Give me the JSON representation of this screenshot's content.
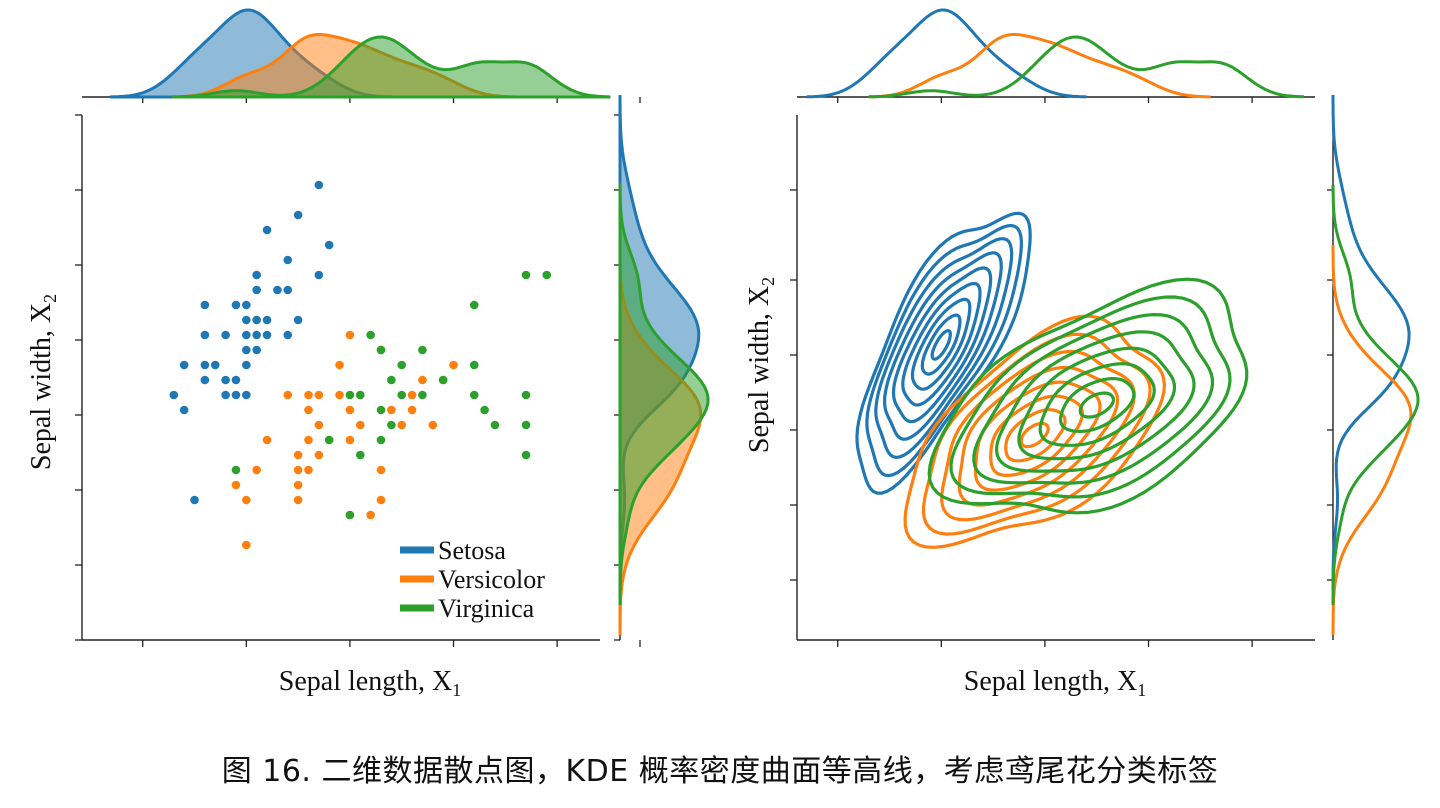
{
  "figure_caption": "图 16. 二维数据散点图，KDE 概率密度曲面等高线，考虑鸢尾花分类标签",
  "colors": {
    "setosa": "#1f77b4",
    "versicolor": "#ff7f0e",
    "virginica": "#2ca02c"
  },
  "chart_data": [
    {
      "type": "scatter",
      "title": "",
      "xlabel": "Sepal length, X",
      "xlabel_sub": "1",
      "ylabel": "Sepal width, X",
      "ylabel_sub": "2",
      "xlim": [
        3.8,
        8.8
      ],
      "ylim": [
        1.5,
        5.0
      ],
      "x_ticks": [
        4,
        5,
        6,
        7,
        8,
        8.8
      ],
      "y_ticks": [
        1.5,
        2.0,
        2.5,
        3.0,
        3.5,
        4.0,
        4.5,
        5.0
      ],
      "tick_labels_shown": false,
      "legend": {
        "position": "lower-right",
        "entries": [
          "Setosa",
          "Versicolor",
          "Virginica"
        ]
      },
      "series": [
        {
          "name": "Setosa",
          "points": [
            [
              4.3,
              3.0
            ],
            [
              4.4,
              2.9
            ],
            [
              4.4,
              3.2
            ],
            [
              4.5,
              2.3
            ],
            [
              4.6,
              3.1
            ],
            [
              4.6,
              3.4
            ],
            [
              4.6,
              3.6
            ],
            [
              4.6,
              3.2
            ],
            [
              4.7,
              3.2
            ],
            [
              4.8,
              3.4
            ],
            [
              4.8,
              3.0
            ],
            [
              4.8,
              3.1
            ],
            [
              4.9,
              3.0
            ],
            [
              4.9,
              3.1
            ],
            [
              4.9,
              3.6
            ],
            [
              5.0,
              3.6
            ],
            [
              5.0,
              3.4
            ],
            [
              5.0,
              3.0
            ],
            [
              5.0,
              3.3
            ],
            [
              5.0,
              3.5
            ],
            [
              5.0,
              3.2
            ],
            [
              5.1,
              3.5
            ],
            [
              5.1,
              3.8
            ],
            [
              5.1,
              3.7
            ],
            [
              5.1,
              3.3
            ],
            [
              5.1,
              3.4
            ],
            [
              5.2,
              3.5
            ],
            [
              5.2,
              3.4
            ],
            [
              5.2,
              4.1
            ],
            [
              5.3,
              3.7
            ],
            [
              5.4,
              3.9
            ],
            [
              5.4,
              3.7
            ],
            [
              5.4,
              3.4
            ],
            [
              5.5,
              4.2
            ],
            [
              5.5,
              3.5
            ],
            [
              5.7,
              4.4
            ],
            [
              5.7,
              3.8
            ],
            [
              5.8,
              4.0
            ]
          ]
        },
        {
          "name": "Versicolor",
          "points": [
            [
              5.0,
              2.0
            ],
            [
              4.9,
              2.4
            ],
            [
              5.0,
              2.3
            ],
            [
              5.1,
              2.5
            ],
            [
              5.2,
              2.7
            ],
            [
              5.4,
              3.0
            ],
            [
              5.5,
              2.3
            ],
            [
              5.5,
              2.4
            ],
            [
              5.5,
              2.5
            ],
            [
              5.5,
              2.6
            ],
            [
              5.6,
              2.9
            ],
            [
              5.6,
              3.0
            ],
            [
              5.6,
              2.7
            ],
            [
              5.6,
              2.5
            ],
            [
              5.7,
              2.8
            ],
            [
              5.7,
              2.6
            ],
            [
              5.7,
              3.0
            ],
            [
              5.8,
              2.7
            ],
            [
              5.9,
              3.0
            ],
            [
              5.9,
              3.2
            ],
            [
              6.0,
              2.2
            ],
            [
              6.0,
              2.7
            ],
            [
              6.0,
              2.9
            ],
            [
              6.0,
              3.4
            ],
            [
              6.1,
              2.8
            ],
            [
              6.1,
              3.0
            ],
            [
              6.2,
              2.2
            ],
            [
              6.3,
              2.3
            ],
            [
              6.3,
              2.5
            ],
            [
              6.3,
              3.3
            ],
            [
              6.4,
              2.9
            ],
            [
              6.5,
              2.8
            ],
            [
              6.6,
              2.9
            ],
            [
              6.6,
              3.0
            ],
            [
              6.7,
              3.1
            ],
            [
              6.8,
              2.8
            ],
            [
              6.9,
              3.1
            ],
            [
              7.0,
              3.2
            ]
          ]
        },
        {
          "name": "Virginica",
          "points": [
            [
              4.9,
              2.5
            ],
            [
              5.8,
              2.7
            ],
            [
              6.0,
              2.2
            ],
            [
              6.0,
              3.0
            ],
            [
              6.1,
              2.6
            ],
            [
              6.1,
              3.0
            ],
            [
              6.2,
              3.4
            ],
            [
              6.3,
              2.7
            ],
            [
              6.3,
              2.9
            ],
            [
              6.3,
              3.3
            ],
            [
              6.4,
              2.8
            ],
            [
              6.4,
              3.1
            ],
            [
              6.5,
              3.0
            ],
            [
              6.5,
              3.2
            ],
            [
              6.7,
              3.0
            ],
            [
              6.7,
              3.3
            ],
            [
              6.9,
              3.1
            ],
            [
              7.2,
              3.6
            ],
            [
              7.2,
              3.2
            ],
            [
              7.2,
              3.0
            ],
            [
              7.3,
              2.9
            ],
            [
              7.4,
              2.8
            ],
            [
              7.7,
              3.8
            ],
            [
              7.7,
              2.6
            ],
            [
              7.7,
              2.8
            ],
            [
              7.7,
              3.0
            ],
            [
              7.9,
              3.8
            ]
          ]
        }
      ]
    },
    {
      "type": "kde-contour",
      "title": "",
      "xlabel": "Sepal length, X",
      "xlabel_sub": "1",
      "ylabel": "Sepal width, X",
      "ylabel_sub": "2",
      "xlim": [
        3.8,
        8.8
      ],
      "ylim": [
        1.5,
        5.0
      ],
      "x_ticks": [
        4,
        5,
        6,
        7,
        8
      ],
      "y_ticks": [
        2.0,
        2.5,
        3.0,
        3.5
      ],
      "tick_labels_shown": false,
      "series": [
        {
          "name": "Setosa",
          "mean": [
            5.0,
            3.4
          ],
          "std": [
            0.35,
            0.38
          ],
          "corr": 0.74,
          "levels": 9
        },
        {
          "name": "Versicolor",
          "mean": [
            5.9,
            2.8
          ],
          "std": [
            0.52,
            0.31
          ],
          "corr": 0.53,
          "levels": 8
        },
        {
          "name": "Virginica",
          "mean": [
            6.5,
            3.0
          ],
          "std": [
            0.64,
            0.32
          ],
          "corr": 0.46,
          "levels": 8
        }
      ]
    }
  ]
}
